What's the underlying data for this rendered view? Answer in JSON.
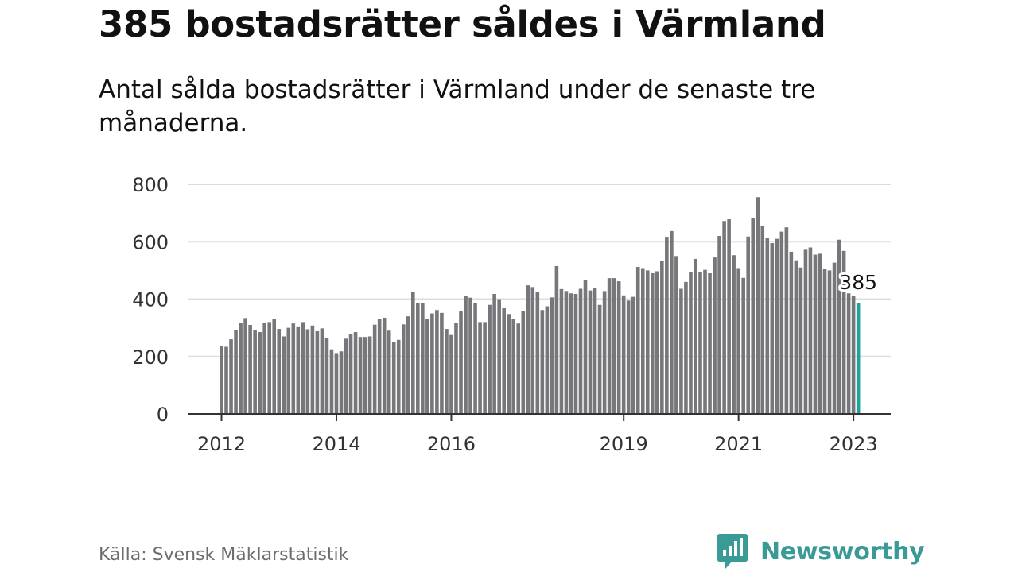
{
  "header": {
    "title": "385 bostadsrätter såldes i Värmland",
    "subtitle": "Antal sålda bostadsrätter i Värmland under de senaste tre månaderna."
  },
  "footer": {
    "source": "Källa: Svensk Mäklarstatistik",
    "brand": "Newsworthy"
  },
  "colors": {
    "bar": "#77777b",
    "highlight": "#1fa29a",
    "grid": "#dddddd",
    "axis": "#333333",
    "brand": "#3a9a96"
  },
  "icons": {
    "brand_logo": "bar-chart-speech-bubble-icon"
  },
  "chart_data": {
    "type": "bar",
    "title": "",
    "xlabel": "",
    "ylabel": "",
    "ylim": [
      0,
      800
    ],
    "yticks": [
      0,
      200,
      400,
      600,
      800
    ],
    "grid": true,
    "x_start": "2012-01",
    "x_tick_labels": [
      {
        "date": "2012-01",
        "label": "2012"
      },
      {
        "date": "2014-01",
        "label": "2014"
      },
      {
        "date": "2016-01",
        "label": "2016"
      },
      {
        "date": "2019-01",
        "label": "2019"
      },
      {
        "date": "2021-01",
        "label": "2021"
      },
      {
        "date": "2023-01",
        "label": "2023"
      }
    ],
    "series": [
      {
        "values": [
          237,
          234,
          260,
          292,
          318,
          334,
          310,
          293,
          285,
          318,
          320,
          330,
          296,
          270,
          300,
          315,
          305,
          320,
          295,
          308,
          288,
          298,
          265,
          225,
          212,
          218,
          262,
          278,
          285,
          268,
          268,
          270,
          311,
          330,
          335,
          290,
          250,
          258,
          312,
          340,
          425,
          385,
          385,
          332,
          350,
          362,
          352,
          296,
          275,
          318,
          357,
          410,
          405,
          385,
          320,
          320,
          380,
          418,
          400,
          368,
          348,
          332,
          315,
          358,
          448,
          442,
          425,
          362,
          375,
          406,
          515,
          435,
          428,
          420,
          418,
          436,
          465,
          430,
          438,
          380,
          428,
          473,
          473,
          462,
          413,
          395,
          408,
          512,
          508,
          500,
          490,
          497,
          532,
          617,
          637,
          550,
          436,
          460,
          493,
          540,
          495,
          502,
          490,
          545,
          620,
          672,
          678,
          553,
          508,
          474,
          618,
          682,
          755,
          655,
          612,
          595,
          610,
          635,
          650,
          565,
          535,
          510,
          572,
          580,
          555,
          558,
          506,
          500,
          527,
          607,
          568,
          420,
          410,
          385
        ],
        "highlight_last": true
      }
    ],
    "annotations": [
      {
        "text": "385",
        "target": "last"
      }
    ]
  }
}
